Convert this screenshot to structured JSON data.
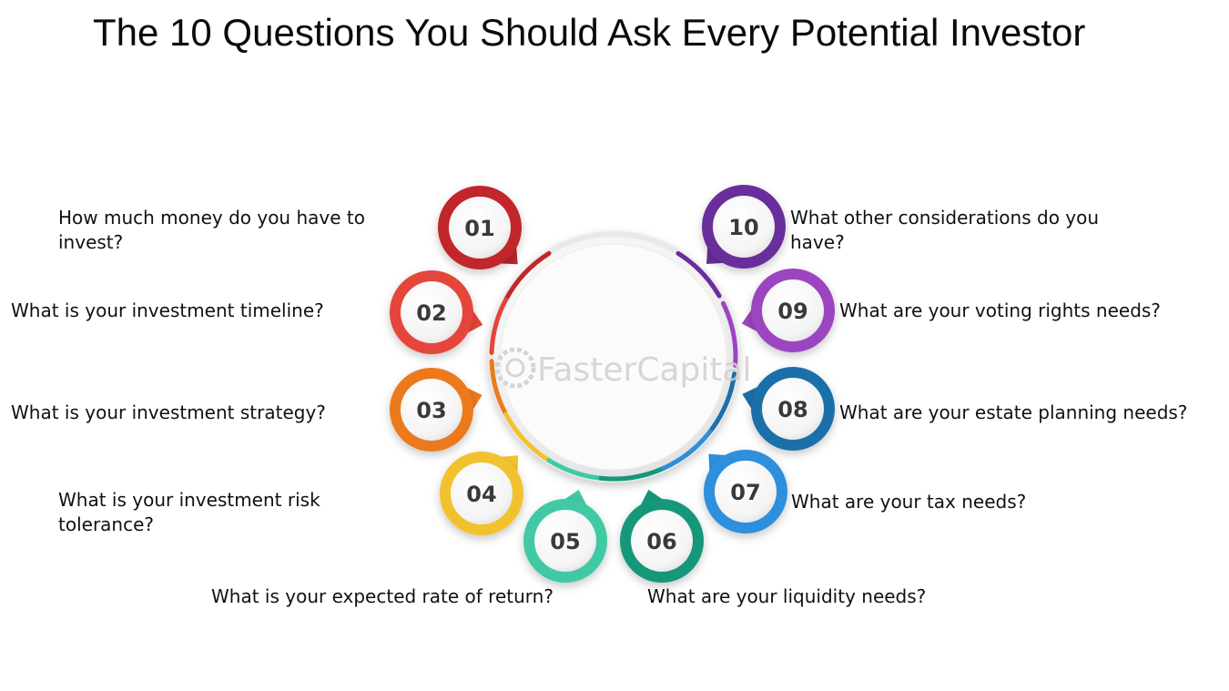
{
  "title": "The 10 Questions You Should Ask Every Potential Investor",
  "watermark": "FasterCapital",
  "items": [
    {
      "number": "01",
      "text": "How much money do you have to invest?",
      "color": "#c0262b"
    },
    {
      "number": "02",
      "text": "What is your investment timeline?",
      "color": "#e5443a"
    },
    {
      "number": "03",
      "text": "What is your investment strategy?",
      "color": "#ec7a1f"
    },
    {
      "number": "04",
      "text": "What is your investment risk tolerance?",
      "color": "#f2c22e"
    },
    {
      "number": "05",
      "text": "What is your expected rate of return?",
      "color": "#3fc9a4"
    },
    {
      "number": "06",
      "text": "What are your liquidity needs?",
      "color": "#13977a"
    },
    {
      "number": "07",
      "text": "What are your tax needs?",
      "color": "#2d8fdc"
    },
    {
      "number": "08",
      "text": "What are your estate planning needs?",
      "color": "#1c6fa9"
    },
    {
      "number": "09",
      "text": "What are your voting rights needs?",
      "color": "#9b45c0"
    },
    {
      "number": "10",
      "text": "What other considerations do you have?",
      "color": "#6a2d9c"
    }
  ]
}
